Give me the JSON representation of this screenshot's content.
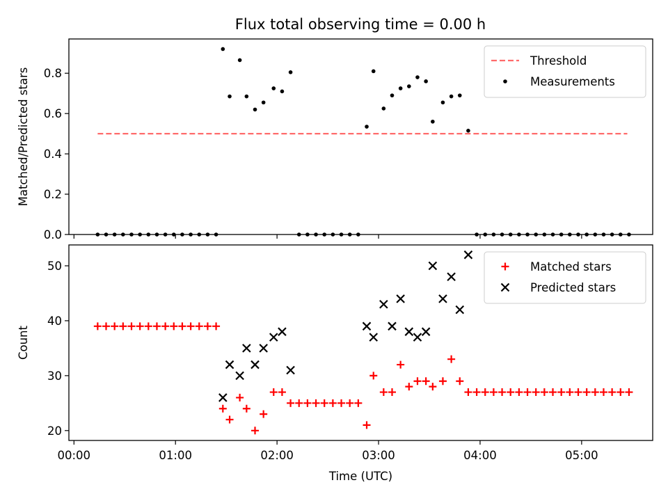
{
  "title": "Flux total observing time = 0.00 h",
  "chart_data": [
    {
      "type": "scatter",
      "ylabel": "Matched/Predicted stars",
      "xlim_hours": [
        -0.05,
        5.7
      ],
      "ylim": [
        0,
        0.97
      ],
      "yticks": [
        "0.0",
        "0.2",
        "0.4",
        "0.6",
        "0.8"
      ],
      "grid": false,
      "legend_position": "top-right",
      "threshold": {
        "name": "Threshold",
        "value": 0.5,
        "x_start": "00:14",
        "x_end": "05:27",
        "color": "#ff6b6b"
      },
      "series": [
        {
          "name": "Measurements",
          "color": "#000000",
          "marker": "dot",
          "points": [
            [
              "00:14",
              0
            ],
            [
              "00:19",
              0
            ],
            [
              "00:24",
              0
            ],
            [
              "00:29",
              0
            ],
            [
              "00:34",
              0
            ],
            [
              "00:39",
              0
            ],
            [
              "00:44",
              0
            ],
            [
              "00:49",
              0
            ],
            [
              "00:54",
              0
            ],
            [
              "00:59",
              0
            ],
            [
              "01:04",
              0
            ],
            [
              "01:09",
              0
            ],
            [
              "01:14",
              0
            ],
            [
              "01:19",
              0
            ],
            [
              "01:24",
              0
            ],
            [
              "01:28",
              0.92
            ],
            [
              "01:32",
              0.685
            ],
            [
              "01:38",
              0.865
            ],
            [
              "01:42",
              0.685
            ],
            [
              "01:47",
              0.62
            ],
            [
              "01:52",
              0.655
            ],
            [
              "01:58",
              0.725
            ],
            [
              "02:03",
              0.71
            ],
            [
              "02:08",
              0.805
            ],
            [
              "02:13",
              0
            ],
            [
              "02:18",
              0
            ],
            [
              "02:23",
              0
            ],
            [
              "02:28",
              0
            ],
            [
              "02:33",
              0
            ],
            [
              "02:38",
              0
            ],
            [
              "02:43",
              0
            ],
            [
              "02:48",
              0
            ],
            [
              "02:53",
              0.535
            ],
            [
              "02:57",
              0.81
            ],
            [
              "03:03",
              0.625
            ],
            [
              "03:08",
              0.69
            ],
            [
              "03:13",
              0.725
            ],
            [
              "03:18",
              0.735
            ],
            [
              "03:23",
              0.78
            ],
            [
              "03:28",
              0.76
            ],
            [
              "03:32",
              0.56
            ],
            [
              "03:38",
              0.655
            ],
            [
              "03:43",
              0.685
            ],
            [
              "03:48",
              0.69
            ],
            [
              "03:53",
              0.515
            ],
            [
              "03:58",
              0
            ],
            [
              "04:03",
              0
            ],
            [
              "04:08",
              0
            ],
            [
              "04:13",
              0
            ],
            [
              "04:18",
              0
            ],
            [
              "04:23",
              0
            ],
            [
              "04:28",
              0
            ],
            [
              "04:33",
              0
            ],
            [
              "04:38",
              0
            ],
            [
              "04:43",
              0
            ],
            [
              "04:48",
              0
            ],
            [
              "04:53",
              0
            ],
            [
              "04:58",
              0
            ],
            [
              "05:03",
              0
            ],
            [
              "05:08",
              0
            ],
            [
              "05:13",
              0
            ],
            [
              "05:18",
              0
            ],
            [
              "05:23",
              0
            ],
            [
              "05:28",
              0
            ]
          ]
        }
      ]
    },
    {
      "type": "scatter",
      "xlabel": "Time (UTC)",
      "ylabel": "Count",
      "xlim_hours": [
        -0.05,
        5.7
      ],
      "ylim": [
        18.2,
        53.8
      ],
      "xticks": [
        "00:00",
        "01:00",
        "02:00",
        "03:00",
        "04:00",
        "05:00"
      ],
      "yticks": [
        "20",
        "30",
        "40",
        "50"
      ],
      "grid": false,
      "legend_position": "top-right",
      "series": [
        {
          "name": "Matched stars",
          "color": "#ff0000",
          "marker": "plus",
          "points": [
            [
              "00:14",
              39
            ],
            [
              "00:19",
              39
            ],
            [
              "00:24",
              39
            ],
            [
              "00:29",
              39
            ],
            [
              "00:34",
              39
            ],
            [
              "00:39",
              39
            ],
            [
              "00:44",
              39
            ],
            [
              "00:49",
              39
            ],
            [
              "00:54",
              39
            ],
            [
              "00:59",
              39
            ],
            [
              "01:04",
              39
            ],
            [
              "01:09",
              39
            ],
            [
              "01:14",
              39
            ],
            [
              "01:19",
              39
            ],
            [
              "01:24",
              39
            ],
            [
              "01:28",
              24
            ],
            [
              "01:32",
              22
            ],
            [
              "01:38",
              26
            ],
            [
              "01:42",
              24
            ],
            [
              "01:47",
              20
            ],
            [
              "01:52",
              23
            ],
            [
              "01:58",
              27
            ],
            [
              "02:03",
              27
            ],
            [
              "02:08",
              25
            ],
            [
              "02:13",
              25
            ],
            [
              "02:18",
              25
            ],
            [
              "02:23",
              25
            ],
            [
              "02:28",
              25
            ],
            [
              "02:33",
              25
            ],
            [
              "02:38",
              25
            ],
            [
              "02:43",
              25
            ],
            [
              "02:48",
              25
            ],
            [
              "02:53",
              21
            ],
            [
              "02:57",
              30
            ],
            [
              "03:03",
              27
            ],
            [
              "03:08",
              27
            ],
            [
              "03:13",
              32
            ],
            [
              "03:18",
              28
            ],
            [
              "03:23",
              29
            ],
            [
              "03:28",
              29
            ],
            [
              "03:32",
              28
            ],
            [
              "03:38",
              29
            ],
            [
              "03:43",
              33
            ],
            [
              "03:48",
              29
            ],
            [
              "03:53",
              27
            ],
            [
              "03:58",
              27
            ],
            [
              "04:03",
              27
            ],
            [
              "04:08",
              27
            ],
            [
              "04:13",
              27
            ],
            [
              "04:18",
              27
            ],
            [
              "04:23",
              27
            ],
            [
              "04:28",
              27
            ],
            [
              "04:33",
              27
            ],
            [
              "04:38",
              27
            ],
            [
              "04:43",
              27
            ],
            [
              "04:48",
              27
            ],
            [
              "04:53",
              27
            ],
            [
              "04:58",
              27
            ],
            [
              "05:03",
              27
            ],
            [
              "05:08",
              27
            ],
            [
              "05:13",
              27
            ],
            [
              "05:18",
              27
            ],
            [
              "05:23",
              27
            ],
            [
              "05:28",
              27
            ]
          ]
        },
        {
          "name": "Predicted stars",
          "color": "#000000",
          "marker": "x",
          "points": [
            [
              "01:28",
              26
            ],
            [
              "01:32",
              32
            ],
            [
              "01:38",
              30
            ],
            [
              "01:42",
              35
            ],
            [
              "01:47",
              32
            ],
            [
              "01:52",
              35
            ],
            [
              "01:58",
              37
            ],
            [
              "02:03",
              38
            ],
            [
              "02:08",
              31
            ],
            [
              "02:53",
              39
            ],
            [
              "02:57",
              37
            ],
            [
              "03:03",
              43
            ],
            [
              "03:08",
              39
            ],
            [
              "03:13",
              44
            ],
            [
              "03:18",
              38
            ],
            [
              "03:23",
              37
            ],
            [
              "03:28",
              38
            ],
            [
              "03:32",
              50
            ],
            [
              "03:38",
              44
            ],
            [
              "03:43",
              48
            ],
            [
              "03:48",
              42
            ],
            [
              "03:53",
              52
            ]
          ]
        }
      ]
    }
  ]
}
